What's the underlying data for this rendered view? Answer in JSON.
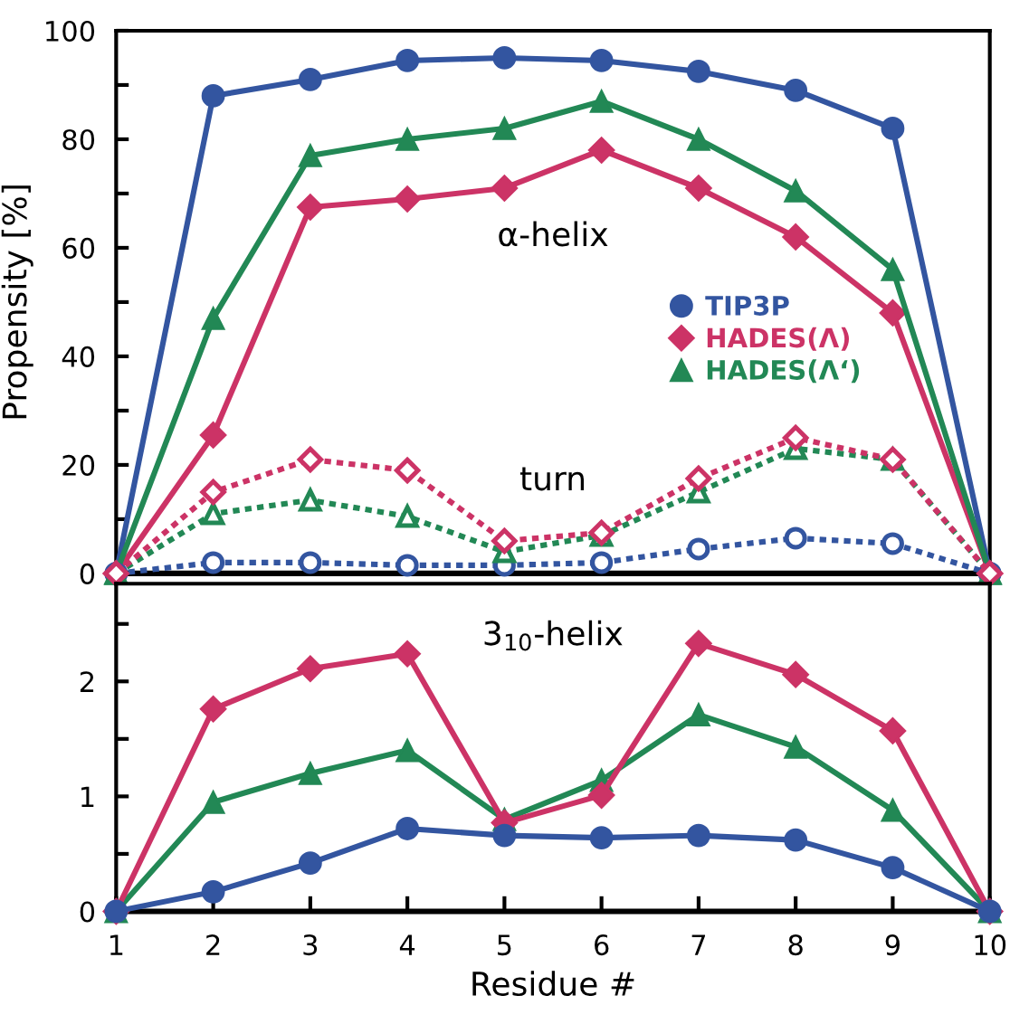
{
  "chart_data": [
    {
      "type": "line",
      "ylabel": "Propensity [%]",
      "xlim": [
        1,
        10
      ],
      "xticks": [
        1,
        2,
        3,
        4,
        5,
        6,
        7,
        8,
        9,
        10
      ],
      "ylim": [
        0,
        100
      ],
      "yticks": [
        0,
        {
          "value": 10,
          "label": null
        },
        20,
        {
          "value": 30,
          "label": null
        },
        40,
        {
          "value": 50,
          "label": null
        },
        60,
        {
          "value": 70,
          "label": null
        },
        80,
        {
          "value": 90,
          "label": null
        },
        100
      ],
      "tick_labels": "y",
      "grid": false,
      "legend": "right",
      "x": [
        1,
        2,
        3,
        4,
        5,
        6,
        7,
        8,
        9,
        10
      ],
      "annotations": [
        "α-helix",
        "turn"
      ],
      "series": [
        {
          "name": "TIP3P",
          "color": "#3355a0",
          "marker": "circle",
          "line_style": "solid",
          "values": [
            0,
            88,
            91,
            94.5,
            95,
            94.5,
            92.5,
            89,
            82,
            0
          ]
        },
        {
          "name": "HADES(Λ)",
          "color": "#cc3366",
          "marker": "diamond",
          "line_style": "solid",
          "values": [
            0,
            25.5,
            67.5,
            69,
            71,
            78,
            71,
            62,
            48,
            0
          ]
        },
        {
          "name": "HADES(Λ‘)",
          "color": "#228855",
          "marker": "triangle",
          "line_style": "solid",
          "values": [
            0,
            47,
            77,
            80,
            82,
            87,
            80,
            70.5,
            56,
            0
          ]
        },
        {
          "color": "#3355a0",
          "marker": "circle",
          "line_style": "dotted",
          "values": [
            0,
            2,
            2,
            1.5,
            1.5,
            2,
            4.5,
            6.5,
            5.5,
            0
          ]
        },
        {
          "color": "#228855",
          "marker": "triangle",
          "line_style": "dotted",
          "values": [
            0,
            11,
            13.5,
            10.5,
            4,
            7,
            15,
            23,
            21,
            0
          ]
        },
        {
          "color": "#cc3366",
          "marker": "diamond",
          "line_style": "dotted",
          "values": [
            0,
            15,
            21,
            19,
            6,
            7.5,
            17.5,
            25,
            21,
            0
          ]
        }
      ]
    },
    {
      "type": "line",
      "xlabel": "Residue #",
      "xlim": [
        1,
        10
      ],
      "xticks": [
        1,
        2,
        3,
        4,
        5,
        6,
        7,
        8,
        9,
        10
      ],
      "ylim": [
        0,
        2.85
      ],
      "yticks": [
        0,
        {
          "value": 0.5,
          "label": null
        },
        1,
        {
          "value": 1.5,
          "label": null
        },
        2,
        {
          "value": 2.5,
          "label": null
        }
      ],
      "grid": false,
      "x": [
        1,
        2,
        3,
        4,
        5,
        6,
        7,
        8,
        9,
        10
      ],
      "annotations": [
        "3$_{10}$-helix"
      ],
      "series": [
        {
          "color": "#228855",
          "marker": "triangle",
          "line_style": "solid",
          "values": [
            0,
            0.95,
            1.2,
            1.4,
            0.8,
            1.14,
            1.71,
            1.43,
            0.88,
            0
          ]
        },
        {
          "color": "#cc3366",
          "marker": "diamond",
          "line_style": "solid",
          "values": [
            0,
            1.76,
            2.11,
            2.24,
            0.77,
            1.01,
            2.33,
            2.06,
            1.57,
            0
          ]
        },
        {
          "color": "#3355a0",
          "marker": "circle",
          "line_style": "solid",
          "values": [
            0,
            0.17,
            0.42,
            0.72,
            0.66,
            0.64,
            0.66,
            0.62,
            0.38,
            0
          ]
        }
      ]
    }
  ]
}
